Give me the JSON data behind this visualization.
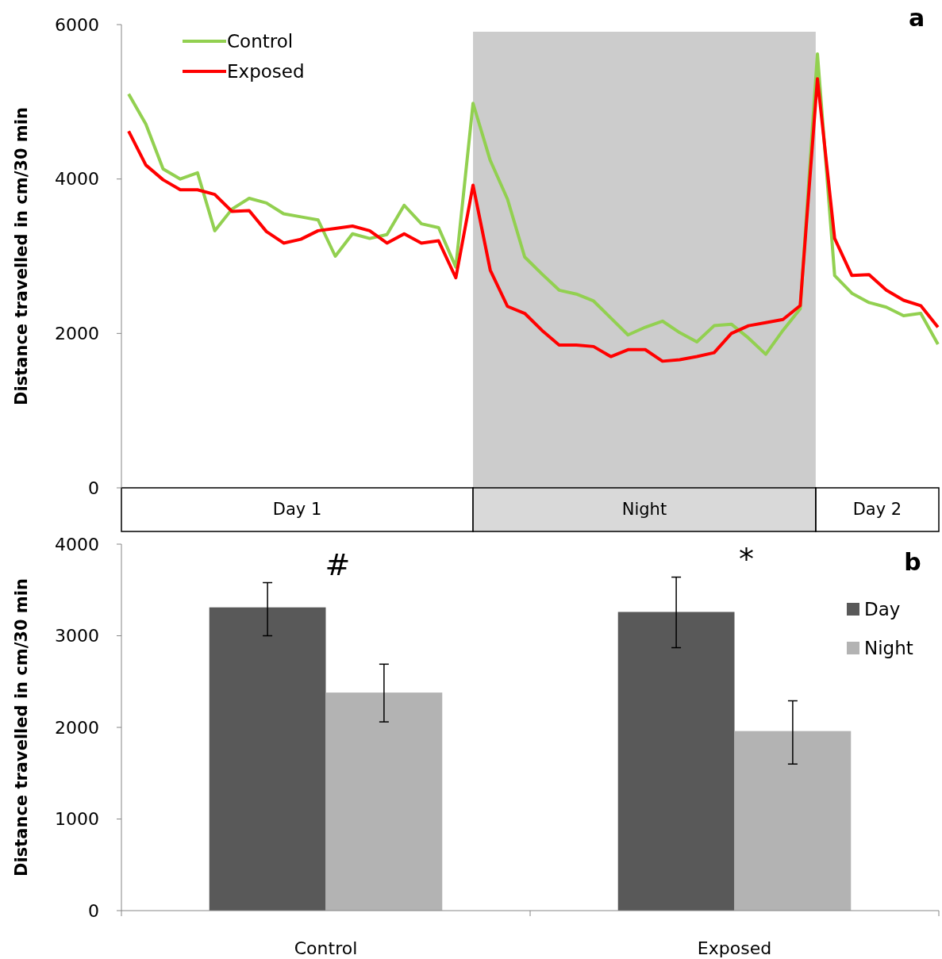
{
  "chart_data": [
    {
      "type": "line",
      "ylabel": "Distance travelled in cm/30 min",
      "categories": [
        null,
        null,
        null,
        null,
        null,
        null,
        null,
        null,
        null,
        null,
        null,
        null,
        null,
        null,
        null,
        null,
        null,
        null,
        null,
        null,
        null,
        null,
        null,
        null,
        null,
        null,
        null,
        null,
        null,
        null,
        null,
        null,
        null,
        null,
        null,
        null,
        null,
        null,
        null,
        null,
        null,
        null,
        null,
        null,
        null,
        null,
        null,
        null
      ],
      "ylim": [
        0,
        6000
      ],
      "yticks": [
        0,
        2000,
        4000,
        6000
      ],
      "legend": "top left",
      "grid": false,
      "annotations": [
        "a",
        "Day 1",
        "Night",
        "Day 2"
      ],
      "series": [
        {
          "name": "Control",
          "color": "#92d050",
          "values": [
            5100,
            4710,
            4130,
            4000,
            4080,
            3330,
            3610,
            3750,
            3690,
            3550,
            3510,
            3470,
            3000,
            3290,
            3230,
            3280,
            3660,
            3420,
            3370,
            2860,
            4980,
            4240,
            3740,
            2990,
            2770,
            2560,
            2510,
            2420,
            2200,
            1980,
            2080,
            2160,
            2010,
            1890,
            2100,
            2120,
            1940,
            1730,
            2040,
            2320,
            5620,
            2750,
            2520,
            2400,
            2340,
            2230,
            2260,
            1860
          ]
        },
        {
          "name": "Exposed",
          "color": "#ff0000",
          "values": [
            4620,
            4180,
            3990,
            3860,
            3860,
            3800,
            3580,
            3590,
            3320,
            3170,
            3220,
            3330,
            3360,
            3390,
            3330,
            3170,
            3290,
            3170,
            3200,
            2720,
            3920,
            2820,
            2350,
            2260,
            2040,
            1850,
            1850,
            1830,
            1700,
            1790,
            1790,
            1640,
            1660,
            1700,
            1750,
            2000,
            2100,
            2140,
            2180,
            2360,
            5300,
            3230,
            2750,
            2760,
            2560,
            2430,
            2360,
            2080
          ]
        }
      ]
    },
    {
      "type": "bar",
      "ylabel": "Distance travelled in cm/30 min",
      "categories": [
        "Control",
        "Exposed"
      ],
      "ylim": [
        0,
        4000
      ],
      "yticks": [
        0,
        1000,
        2000,
        3000,
        4000
      ],
      "legend": "right",
      "grid": false,
      "annotations": [
        "#",
        "*",
        "b"
      ],
      "series": [
        {
          "name": "Day",
          "color": "#595959",
          "values": [
            3310,
            3260
          ],
          "errors": [
            [
              3000,
              3580
            ],
            [
              2870,
              3640
            ]
          ]
        },
        {
          "name": "Night",
          "color": "#b3b3b3",
          "values": [
            2380,
            1960
          ],
          "errors": [
            [
              2060,
              2690
            ],
            [
              1600,
              2290
            ]
          ]
        }
      ]
    }
  ]
}
